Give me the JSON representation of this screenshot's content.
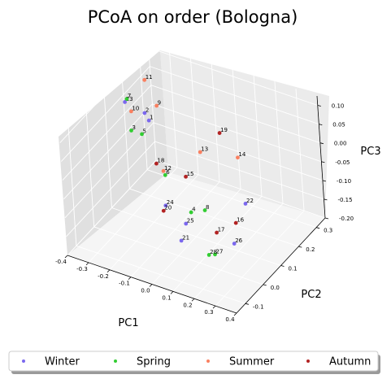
{
  "chart_data": {
    "type": "scatter",
    "projection": "3d",
    "title": "PCoA on order (Bologna)",
    "xlabel": "PC1",
    "ylabel": "PC2",
    "zlabel": "PC3",
    "xlim": [
      -0.4,
      0.4
    ],
    "ylim": [
      -0.15,
      0.35
    ],
    "zlim": [
      -0.2,
      0.125
    ],
    "x_ticks": [
      "-0.4",
      "-0.3",
      "-0.2",
      "-0.1",
      "0.0",
      "0.1",
      "0.2",
      "0.3",
      "0.4"
    ],
    "y_ticks": [
      "-0.1",
      "0.0",
      "0.1",
      "0.2",
      "0.3"
    ],
    "z_ticks": [
      "0.10",
      "0.05",
      "0.00",
      "-0.05",
      "-0.10",
      "-0.15",
      "-0.20"
    ],
    "grid": true,
    "legend_position": "bottom",
    "series": [
      {
        "name": "Winter",
        "color": "#7b68ee",
        "points": [
          {
            "label": "1",
            "x": -0.33,
            "y": 0.25,
            "z": -0.03
          },
          {
            "label": "2",
            "x": -0.33,
            "y": 0.23,
            "z": 0.0
          },
          {
            "label": "22",
            "x": 0.12,
            "y": 0.24,
            "z": -0.16
          },
          {
            "label": "26",
            "x": 0.2,
            "y": 0.08,
            "z": -0.17
          },
          {
            "label": "25",
            "x": 0.0,
            "y": 0.05,
            "z": -0.14
          },
          {
            "label": "24",
            "x": -0.12,
            "y": 0.08,
            "z": -0.13
          },
          {
            "label": "23",
            "x": -0.33,
            "y": 0.13,
            "z": 0.08
          },
          {
            "label": "21",
            "x": 0.0,
            "y": 0.02,
            "z": -0.17
          }
        ]
      },
      {
        "name": "Spring",
        "color": "#32cd32",
        "points": [
          {
            "label": "3",
            "x": -0.4,
            "y": 0.23,
            "z": -0.06
          },
          {
            "label": "4",
            "x": -0.1,
            "y": 0.19,
            "z": -0.2
          },
          {
            "label": "5",
            "x": -0.35,
            "y": 0.23,
            "z": -0.06
          },
          {
            "label": "6",
            "x": -0.25,
            "y": 0.23,
            "z": -0.15
          },
          {
            "label": "7",
            "x": -0.32,
            "y": 0.13,
            "z": 0.09
          },
          {
            "label": "8",
            "x": 0.05,
            "y": 0.1,
            "z": -0.12
          },
          {
            "label": "27",
            "x": 0.14,
            "y": 0.04,
            "z": -0.19
          },
          {
            "label": "28",
            "x": 0.12,
            "y": 0.03,
            "z": -0.19
          }
        ]
      },
      {
        "name": "Summer",
        "color": "#fa8060",
        "points": [
          {
            "label": "9",
            "x": -0.15,
            "y": 0.1,
            "z": 0.12
          },
          {
            "label": "10",
            "x": -0.33,
            "y": 0.16,
            "z": 0.04
          },
          {
            "label": "11",
            "x": -0.32,
            "y": 0.23,
            "z": 0.09
          },
          {
            "label": "12",
            "x": -0.23,
            "y": 0.2,
            "z": -0.12
          },
          {
            "label": "13",
            "x": 0.0,
            "y": 0.15,
            "z": 0.0
          },
          {
            "label": "14",
            "x": 0.18,
            "y": 0.15,
            "z": 0.02
          }
        ]
      },
      {
        "name": "Autumn",
        "color": "#b22222",
        "points": [
          {
            "label": "15",
            "x": -0.05,
            "y": 0.12,
            "z": -0.06
          },
          {
            "label": "16",
            "x": 0.15,
            "y": 0.15,
            "z": -0.16
          },
          {
            "label": "17",
            "x": 0.1,
            "y": 0.1,
            "z": -0.17
          },
          {
            "label": "18",
            "x": -0.28,
            "y": 0.22,
            "z": -0.12
          },
          {
            "label": "19",
            "x": 0.1,
            "y": 0.15,
            "z": 0.07
          },
          {
            "label": "20",
            "x": -0.15,
            "y": 0.1,
            "z": -0.16
          }
        ]
      }
    ]
  },
  "legend": {
    "items": [
      {
        "label": "Winter",
        "color": "#7b68ee"
      },
      {
        "label": "Spring",
        "color": "#32cd32"
      },
      {
        "label": "Summer",
        "color": "#fa8060"
      },
      {
        "label": "Autumn",
        "color": "#b22222"
      }
    ]
  }
}
